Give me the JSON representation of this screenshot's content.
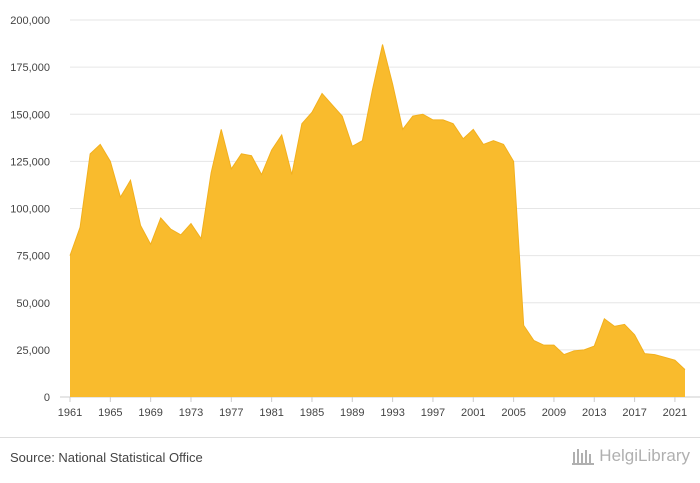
{
  "chart_data": {
    "type": "area",
    "title": "",
    "xlabel": "",
    "ylabel": "",
    "color": "#F9BB2D",
    "grid": true,
    "legend": "none",
    "ylim": [
      0,
      200000
    ],
    "yticks": [
      0,
      25000,
      50000,
      75000,
      100000,
      125000,
      150000,
      175000,
      200000
    ],
    "ytick_labels": [
      "0",
      "25,000",
      "50,000",
      "75,000",
      "100,000",
      "125,000",
      "150,000",
      "175,000",
      "200,000"
    ],
    "xticks": [
      1961,
      1965,
      1969,
      1973,
      1977,
      1981,
      1985,
      1989,
      1993,
      1997,
      2001,
      2005,
      2009,
      2013,
      2017,
      2021
    ],
    "x": [
      1961,
      1962,
      1963,
      1964,
      1965,
      1966,
      1967,
      1968,
      1969,
      1970,
      1971,
      1972,
      1973,
      1974,
      1975,
      1976,
      1977,
      1978,
      1979,
      1980,
      1981,
      1982,
      1983,
      1984,
      1985,
      1986,
      1987,
      1988,
      1989,
      1990,
      1991,
      1992,
      1993,
      1994,
      1995,
      1996,
      1997,
      1998,
      1999,
      2000,
      2001,
      2002,
      2003,
      2004,
      2005,
      2006,
      2007,
      2008,
      2009,
      2010,
      2011,
      2012,
      2013,
      2014,
      2015,
      2016,
      2017,
      2018,
      2019,
      2020,
      2021,
      2022
    ],
    "values": [
      75000,
      90000,
      129000,
      134000,
      125000,
      106000,
      115000,
      91000,
      81000,
      95000,
      89000,
      86000,
      92000,
      84000,
      119000,
      142000,
      121000,
      129000,
      128000,
      118000,
      131000,
      139000,
      118000,
      145000,
      151000,
      161000,
      155000,
      149000,
      133000,
      136000,
      163000,
      187000,
      166000,
      142000,
      149000,
      150000,
      147000,
      147000,
      145000,
      137000,
      142000,
      134000,
      136000,
      134000,
      125000,
      38000,
      30000,
      27500,
      27500,
      22500,
      24500,
      25000,
      27000,
      41500,
      37500,
      38500,
      33000,
      23000,
      22500,
      21000,
      19500,
      14500
    ]
  },
  "footer": {
    "source": "Source: National Statistical Office",
    "brand": "HelgiLibrary"
  }
}
